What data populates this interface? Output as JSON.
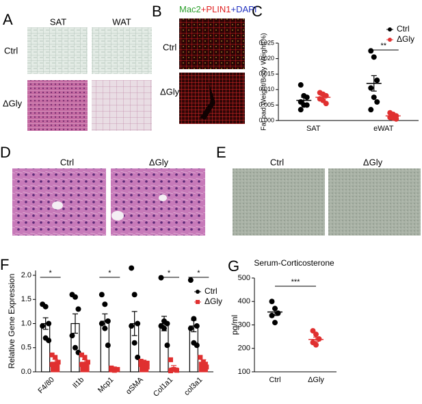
{
  "panel_labels": [
    "A",
    "B",
    "C",
    "D",
    "E",
    "F",
    "G"
  ],
  "panel_a": {
    "columns": [
      "SAT",
      "WAT"
    ],
    "rows": [
      "Ctrl",
      "ΔGly"
    ]
  },
  "panel_b": {
    "stain": [
      {
        "text": "Mac2",
        "color": "#2ca02c"
      },
      {
        "text": "+PLIN1",
        "color": "#e02020"
      },
      {
        "text": "+DAPI",
        "color": "#2030c0"
      }
    ],
    "rows": [
      "Ctrl",
      "ΔGly"
    ]
  },
  "panel_d": {
    "columns": [
      "Ctrl",
      "ΔGly"
    ]
  },
  "panel_e": {
    "columns": [
      "Ctrl",
      "ΔGly"
    ]
  },
  "chart_data": [
    {
      "type": "scatter",
      "y_label": "Fat pad Weight/Body Weight(%)",
      "categories": [
        "SAT",
        "eWAT"
      ],
      "ylim": [
        0,
        0.025
      ],
      "yticks": [
        {
          "value": 0,
          "label": "0.000"
        },
        {
          "value": 0.005,
          "label": "0.005"
        },
        {
          "value": 0.01,
          "label": "0.010"
        },
        {
          "value": 0.015,
          "label": "0.015"
        },
        {
          "value": 0.02,
          "label": "0.020"
        },
        {
          "value": 0.025,
          "label": "0.025"
        }
      ],
      "series": [
        {
          "name": "Ctrl",
          "color": "#000000",
          "marker": "circle",
          "values": [
            [
              0.0115,
              0.008,
              0.0075,
              0.006,
              0.005,
              0.005,
              0.0035
            ],
            [
              0.0225,
              0.0205,
              0.013,
              0.0105,
              0.0075,
              0.006,
              0.0035
            ]
          ],
          "mean": [
            0.0065,
            0.012
          ],
          "sem": [
            0.001,
            0.0025
          ]
        },
        {
          "name": "ΔGly",
          "color": "#e03030",
          "marker": "circle",
          "values": [
            [
              0.009,
              0.0085,
              0.008,
              0.007,
              0.0065,
              0.0055
            ],
            [
              0.0025,
              0.002,
              0.0015,
              0.001,
              0.0008,
              0.0005
            ]
          ],
          "mean": [
            0.0075,
            0.0015
          ],
          "sem": [
            0.0006,
            0.0003
          ]
        }
      ],
      "significance": [
        null,
        "**"
      ]
    },
    {
      "type": "bar",
      "y_label": "Relative Gene Expression",
      "categories": [
        "F4/80",
        "Il1b",
        "Mcp1",
        "αSMA",
        "Col1a1",
        "col3a1"
      ],
      "ylim": [
        0,
        2.1
      ],
      "yticks": [
        {
          "value": 0,
          "label": "0.0"
        },
        0.5,
        {
          "value": 1,
          "label": "1.0"
        },
        1.5,
        {
          "value": 2,
          "label": "2.0"
        }
      ],
      "series": [
        {
          "name": "Ctrl",
          "color": "#000000",
          "fill": "#ffffff",
          "marker": "circle",
          "values": [
            [
              1.4,
              1.35,
              1.0,
              0.95,
              0.7,
              0.65
            ],
            [
              1.6,
              1.55,
              1.3,
              0.75,
              0.5,
              0.4
            ],
            [
              1.6,
              1.4,
              1.05,
              1.0,
              0.9,
              0.55
            ],
            [
              2.15,
              1.6,
              1.0,
              0.95,
              0.6,
              0.3
            ],
            [
              1.95,
              1.05,
              1.0,
              0.95,
              0.9,
              0.55
            ],
            [
              1.9,
              1.1,
              0.95,
              0.9,
              0.6,
              0.55
            ]
          ],
          "mean": [
            1.0,
            1.0,
            1.05,
            1.0,
            1.0,
            0.95
          ],
          "sem": [
            0.12,
            0.2,
            0.15,
            0.25,
            0.15,
            0.12
          ]
        },
        {
          "name": "ΔGly",
          "color": "#e03030",
          "fill": "#e03030",
          "marker": "square",
          "values": [
            [
              0.35,
              0.3,
              0.2,
              0.15,
              0.05
            ],
            [
              0.35,
              0.3,
              0.2,
              0.15,
              0.1
            ],
            [
              0.08,
              0.06,
              0.05,
              0.04,
              0.03
            ],
            [
              0.22,
              0.2,
              0.18,
              0.15,
              0.12,
              0.1
            ],
            [
              0.25,
              0.05,
              0.03,
              0.02
            ],
            [
              0.3,
              0.2,
              0.1
            ]
          ],
          "mean": [
            0.2,
            0.2,
            0.05,
            0.17,
            0.08,
            0.2
          ],
          "sem": [
            0.06,
            0.05,
            0.01,
            0.02,
            0.05,
            0.05
          ]
        }
      ],
      "significance": [
        "*",
        null,
        "*",
        null,
        "*",
        "*"
      ]
    },
    {
      "type": "scatter",
      "title": "Serum-Corticosterone",
      "y_label": "pg/ml",
      "categories": [
        "Ctrl",
        "ΔGly"
      ],
      "ylim": [
        100,
        500
      ],
      "yticks": [
        100,
        200,
        300,
        400,
        500
      ],
      "colors": [
        "#000000",
        "#e03030"
      ],
      "marker": "circle",
      "values": [
        [
          400,
          370,
          350,
          340,
          310
        ],
        [
          275,
          260,
          240,
          225,
          215
        ]
      ],
      "mean": [
        355,
        238
      ],
      "sem": [
        15,
        10
      ],
      "significance": "***"
    }
  ]
}
